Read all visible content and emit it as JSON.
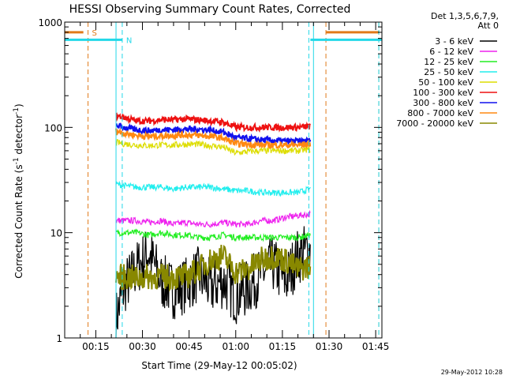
{
  "colors": {
    "background": "#ffffff",
    "axes": "#000000",
    "s_marker": "#e07a1a",
    "n_marker": "#22d8e8",
    "attenuator": "#22d8e8"
  },
  "chart_data": {
    "type": "line",
    "title": "HESSI Observing Summary Count Rates, Corrected",
    "xlabel": "Start Time (29-May-12 00:05:02)",
    "ylabel": "Corrected Count Rate (s",
    "ylabel_sup1": "-1",
    "ylabel_mid": " detector",
    "ylabel_sup2": "-1",
    "ylabel_end": ")",
    "footer": "29-May-2012 10:28",
    "yscale": "log",
    "ylim": [
      1,
      1000
    ],
    "xlim_minutes": [
      5,
      107
    ],
    "x_ticks": [
      {
        "minute": 15,
        "label": "00:15"
      },
      {
        "minute": 30,
        "label": "00:30"
      },
      {
        "minute": 45,
        "label": "00:45"
      },
      {
        "minute": 60,
        "label": "01:00"
      },
      {
        "minute": 75,
        "label": "01:15"
      },
      {
        "minute": 90,
        "label": "01:30"
      },
      {
        "minute": 105,
        "label": "01:45"
      }
    ],
    "y_ticks": [
      {
        "value": 1,
        "label": "1"
      },
      {
        "value": 10,
        "label": "10"
      },
      {
        "value": 100,
        "label": "100"
      },
      {
        "value": 1000,
        "label": "1000"
      }
    ],
    "legend": {
      "header": [
        "Det 1,3,5,6,7,9,",
        "Att 0"
      ],
      "entries": [
        {
          "label": "3 - 6 keV",
          "color": "#000000"
        },
        {
          "label": "6 - 12 keV",
          "color": "#ee22ee"
        },
        {
          "label": "12 - 25 keV",
          "color": "#22ee22"
        },
        {
          "label": "25 - 50 keV",
          "color": "#22eeee"
        },
        {
          "label": "50 - 100 keV",
          "color": "#dddd00"
        },
        {
          "label": "100 - 300 keV",
          "color": "#ee1111"
        },
        {
          "label": "300 - 800 keV",
          "color": "#1111ee"
        },
        {
          "label": "800 - 7000 keV",
          "color": "#ff8811"
        },
        {
          "label": "7000 - 20000 keV",
          "color": "#888800"
        }
      ]
    },
    "data_window_minutes": [
      21.5,
      84.5
    ],
    "series": [
      {
        "name": "3 - 6 keV",
        "color": "#000000",
        "x": [
          21.5,
          24,
          28,
          32,
          36,
          40,
          44,
          48,
          52,
          56,
          60,
          64,
          68,
          72,
          76,
          80,
          84
        ],
        "y": [
          1.5,
          3.0,
          4.5,
          6.5,
          3.5,
          2.8,
          3.2,
          4.0,
          3.0,
          3.5,
          2.5,
          3.0,
          4.0,
          5.0,
          3.5,
          6.0,
          7.0
        ]
      },
      {
        "name": "6 - 12 keV",
        "color": "#ee22ee",
        "x": [
          21.5,
          24,
          28,
          32,
          36,
          40,
          44,
          48,
          52,
          56,
          60,
          64,
          68,
          72,
          76,
          80,
          84
        ],
        "y": [
          13,
          13,
          13,
          12.5,
          13,
          12,
          12.5,
          12,
          12,
          12.5,
          12,
          12,
          13,
          13,
          14,
          14.5,
          15
        ]
      },
      {
        "name": "12 - 25 keV",
        "color": "#22ee22",
        "x": [
          21.5,
          24,
          28,
          32,
          36,
          40,
          44,
          48,
          52,
          56,
          60,
          64,
          68,
          72,
          76,
          80,
          84
        ],
        "y": [
          10,
          10,
          10,
          9.5,
          10,
          9.5,
          9.5,
          9,
          9,
          9.5,
          9,
          9,
          9,
          9,
          9,
          9,
          9.5
        ]
      },
      {
        "name": "25 - 50 keV",
        "color": "#22eeee",
        "x": [
          21.5,
          24,
          28,
          32,
          36,
          40,
          44,
          48,
          52,
          56,
          60,
          64,
          68,
          72,
          76,
          80,
          84
        ],
        "y": [
          29,
          28,
          27,
          27,
          27,
          26,
          27,
          27,
          27,
          26,
          25,
          25,
          24,
          24,
          24,
          24,
          26
        ]
      },
      {
        "name": "50 - 100 keV",
        "color": "#dddd00",
        "x": [
          21.5,
          24,
          28,
          32,
          36,
          40,
          44,
          48,
          52,
          56,
          60,
          64,
          68,
          72,
          76,
          80,
          84
        ],
        "y": [
          72,
          70,
          68,
          67,
          68,
          68,
          69,
          69,
          67,
          65,
          57,
          59,
          60,
          60,
          60,
          60,
          62
        ]
      },
      {
        "name": "100 - 300 keV",
        "color": "#ee1111",
        "x": [
          21.5,
          24,
          28,
          32,
          36,
          40,
          44,
          48,
          52,
          56,
          60,
          64,
          68,
          72,
          76,
          80,
          84
        ],
        "y": [
          128,
          125,
          115,
          115,
          118,
          118,
          120,
          118,
          115,
          112,
          100,
          100,
          100,
          100,
          100,
          100,
          102
        ]
      },
      {
        "name": "300 - 800 keV",
        "color": "#1111ee",
        "x": [
          21.5,
          24,
          28,
          32,
          36,
          40,
          44,
          48,
          52,
          56,
          60,
          64,
          68,
          72,
          76,
          80,
          84
        ],
        "y": [
          105,
          100,
          95,
          93,
          95,
          95,
          96,
          96,
          94,
          90,
          80,
          78,
          76,
          75,
          74,
          74,
          75
        ]
      },
      {
        "name": "800 - 7000 keV",
        "color": "#ff8811",
        "x": [
          21.5,
          24,
          28,
          32,
          36,
          40,
          44,
          48,
          52,
          56,
          60,
          64,
          68,
          72,
          76,
          80,
          84
        ],
        "y": [
          92,
          88,
          84,
          82,
          83,
          84,
          85,
          84,
          82,
          79,
          70,
          69,
          68,
          68,
          68,
          68,
          70
        ]
      },
      {
        "name": "7000 - 20000 keV",
        "color": "#888800",
        "x": [
          21.5,
          24,
          28,
          32,
          36,
          40,
          44,
          48,
          52,
          56,
          60,
          64,
          68,
          72,
          76,
          80,
          84
        ],
        "y": [
          3.8,
          3.8,
          3.7,
          3.8,
          3.8,
          3.8,
          3.8,
          4.5,
          5.5,
          6.0,
          4.2,
          4.5,
          5.5,
          6.0,
          5.5,
          4.5,
          4.8
        ]
      }
    ],
    "markers": [
      {
        "label": "S",
        "color": "#e07a1a",
        "level": 800,
        "lines": [
          12.5,
          89
        ],
        "bars": [
          [
            5,
            11
          ],
          [
            89,
            106
          ]
        ],
        "edge": 106
      },
      {
        "label": "N",
        "color": "#22d8e8",
        "level": 680,
        "lines": [
          23.5,
          83.5
        ],
        "bars": [
          [
            5,
            23.5
          ],
          [
            84,
            107
          ]
        ],
        "edge": 106
      }
    ],
    "attenuator_lines": [
      21.5,
      85
    ]
  }
}
